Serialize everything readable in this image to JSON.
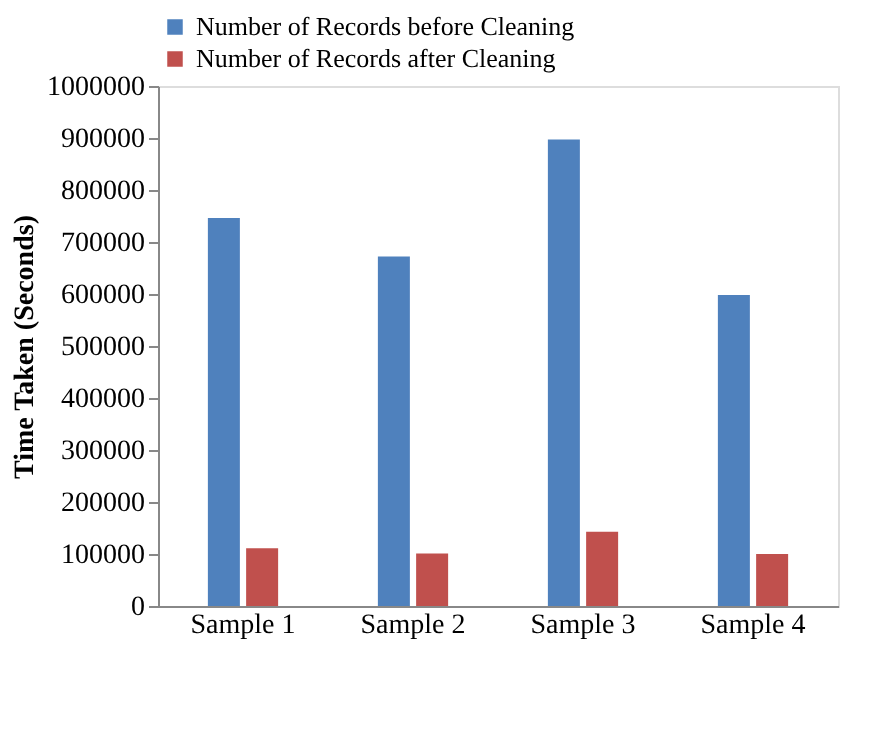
{
  "chart_data": {
    "type": "bar",
    "ylabel": "Time Taken (Seconds)",
    "categories": [
      "Sample 1",
      "Sample 2",
      "Sample 3",
      "Sample 4"
    ],
    "series": [
      {
        "name": "Number of Records before Cleaning",
        "color": "#4f81bd",
        "values": [
          746000,
          672000,
          897000,
          598000
        ]
      },
      {
        "name": "Number of Records after Cleaning",
        "color": "#c0504d",
        "values": [
          111000,
          101000,
          143000,
          100000
        ]
      }
    ],
    "ylim": [
      0,
      1000000
    ],
    "yticks": [
      0,
      100000,
      200000,
      300000,
      400000,
      500000,
      600000,
      700000,
      800000,
      900000,
      1000000
    ],
    "grid": false,
    "legend": "top"
  }
}
